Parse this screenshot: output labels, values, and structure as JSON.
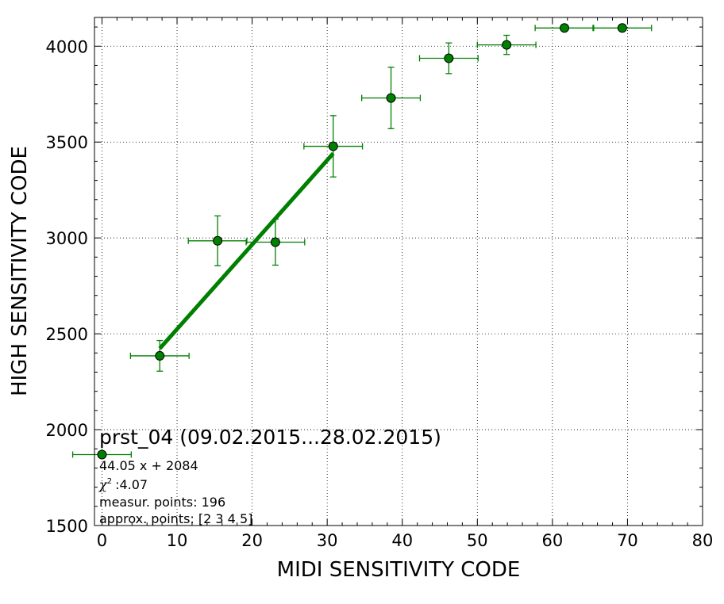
{
  "chart_data": {
    "type": "scatter",
    "title": "prst_04 (09.02.2015...28.02.2015)",
    "xlabel": "MIDI SENSITIVITY CODE",
    "ylabel": "HIGH SENSITIVITY CODE",
    "xlim": [
      -1,
      80
    ],
    "ylim": [
      1500,
      4150
    ],
    "xticks": [
      0,
      10,
      20,
      30,
      40,
      50,
      60,
      70,
      80
    ],
    "yticks": [
      1500,
      2000,
      2500,
      3000,
      3500,
      4000
    ],
    "grid": true,
    "colors": {
      "series": "#008000",
      "axes": "#000000",
      "grid": "#000000"
    },
    "series": [
      {
        "points": [
          {
            "x": 0.0,
            "y": 1870,
            "xerr": 3.9,
            "yerr": 0
          },
          {
            "x": 7.7,
            "y": 2385,
            "xerr": 3.9,
            "yerr": 80
          },
          {
            "x": 15.4,
            "y": 2985,
            "xerr": 3.9,
            "yerr": 130
          },
          {
            "x": 23.1,
            "y": 2978,
            "xerr": 3.9,
            "yerr": 120
          },
          {
            "x": 30.8,
            "y": 3478,
            "xerr": 3.9,
            "yerr": 160
          },
          {
            "x": 38.5,
            "y": 3730,
            "xerr": 3.9,
            "yerr": 160
          },
          {
            "x": 46.2,
            "y": 3937,
            "xerr": 3.9,
            "yerr": 80
          },
          {
            "x": 53.9,
            "y": 4007,
            "xerr": 3.9,
            "yerr": 50
          },
          {
            "x": 61.6,
            "y": 4095,
            "xerr": 3.9,
            "yerr": 0
          },
          {
            "x": 69.3,
            "y": 4095,
            "xerr": 3.9,
            "yerr": 0
          }
        ]
      }
    ],
    "fit": {
      "slope": 44.05,
      "intercept": 2084,
      "x_range": [
        7.7,
        30.8
      ]
    },
    "annotations": [
      "44.05 x + 2084",
      ":4.07",
      "measur. points: 196",
      "approx. points: [2 3 4 5]"
    ],
    "chi_symbol": "χ",
    "chi_sup": "2"
  }
}
